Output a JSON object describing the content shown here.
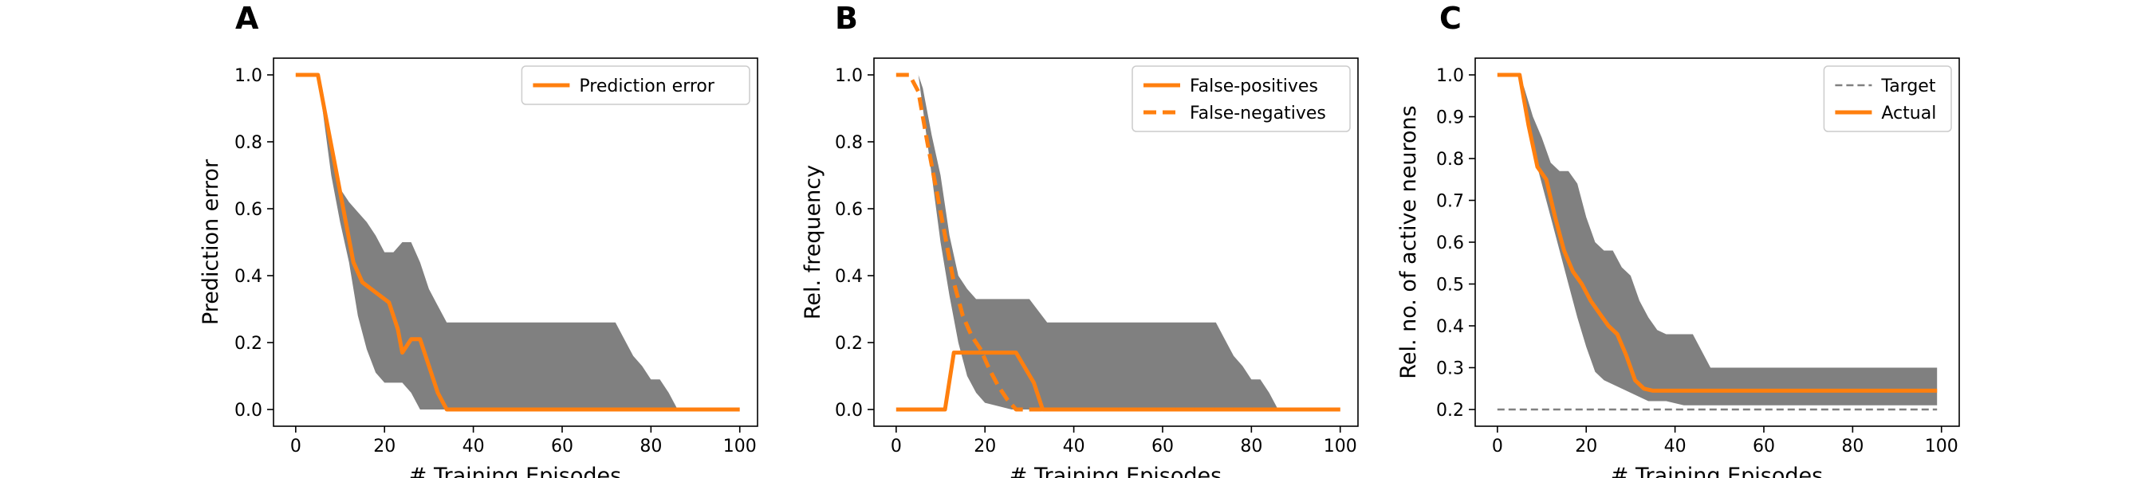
{
  "chart_data": [
    {
      "panel": "A",
      "type": "line",
      "xlabel": "# Training Episodes",
      "ylabel": "Prediction error",
      "xlim": [
        -5,
        104
      ],
      "ylim": [
        -0.05,
        1.05
      ],
      "xticks": [
        0,
        20,
        40,
        60,
        80,
        100
      ],
      "yticks": [
        0.0,
        0.2,
        0.4,
        0.6,
        0.8,
        1.0
      ],
      "ytick_labels": [
        "0.0",
        "0.2",
        "0.4",
        "0.6",
        "0.8",
        "1.0"
      ],
      "legend_position": "top-right",
      "band_color": "#808080",
      "band_x": [
        0,
        5,
        6,
        8,
        10,
        12,
        14,
        16,
        18,
        20,
        22,
        24,
        26,
        28,
        30,
        32,
        34,
        40,
        60,
        72,
        74,
        76,
        78,
        80,
        82,
        84,
        86,
        88,
        100
      ],
      "band_upper": [
        1.0,
        1.0,
        0.96,
        0.8,
        0.66,
        0.62,
        0.59,
        0.56,
        0.52,
        0.47,
        0.47,
        0.5,
        0.5,
        0.44,
        0.36,
        0.31,
        0.26,
        0.26,
        0.26,
        0.26,
        0.21,
        0.16,
        0.13,
        0.09,
        0.09,
        0.05,
        0.0,
        0.0,
        0.0
      ],
      "band_lower": [
        1.0,
        1.0,
        0.9,
        0.7,
        0.56,
        0.44,
        0.28,
        0.18,
        0.11,
        0.08,
        0.08,
        0.08,
        0.05,
        0.0,
        0.0,
        0.0,
        0.0,
        0.0,
        0.0,
        0.0,
        0.0,
        0.0,
        0.0,
        0.0,
        0.0,
        0.0,
        0.0,
        0.0,
        0.0
      ],
      "series": [
        {
          "name": "Prediction error",
          "color": "#ff7f0e",
          "dash": "solid",
          "x": [
            0,
            5,
            7,
            9,
            11,
            13,
            15,
            17,
            19,
            21,
            23,
            24,
            26,
            28,
            30,
            32,
            34,
            100
          ],
          "values": [
            1.0,
            1.0,
            0.86,
            0.72,
            0.58,
            0.44,
            0.38,
            0.36,
            0.34,
            0.32,
            0.24,
            0.17,
            0.21,
            0.21,
            0.13,
            0.05,
            0.0,
            0.0
          ]
        }
      ]
    },
    {
      "panel": "B",
      "type": "line",
      "xlabel": "# Training Episodes",
      "ylabel": "Rel. frequency",
      "xlim": [
        -5,
        104
      ],
      "ylim": [
        -0.05,
        1.05
      ],
      "xticks": [
        0,
        20,
        40,
        60,
        80,
        100
      ],
      "yticks": [
        0.0,
        0.2,
        0.4,
        0.6,
        0.8,
        1.0
      ],
      "ytick_labels": [
        "0.0",
        "0.2",
        "0.4",
        "0.6",
        "0.8",
        "1.0"
      ],
      "legend_position": "top-right",
      "band_color": "#808080",
      "band_x": [
        0,
        5,
        6,
        8,
        10,
        12,
        14,
        16,
        18,
        20,
        26,
        30,
        34,
        40,
        60,
        72,
        74,
        76,
        78,
        80,
        82,
        84,
        86,
        88,
        100
      ],
      "band_upper": [
        1.0,
        1.0,
        0.96,
        0.82,
        0.7,
        0.52,
        0.4,
        0.36,
        0.33,
        0.33,
        0.33,
        0.33,
        0.26,
        0.26,
        0.26,
        0.26,
        0.21,
        0.16,
        0.13,
        0.09,
        0.09,
        0.05,
        0.0,
        0.0,
        0.0
      ],
      "band_lower": [
        1.0,
        1.0,
        0.9,
        0.7,
        0.5,
        0.34,
        0.2,
        0.1,
        0.05,
        0.02,
        0.0,
        0.0,
        0.0,
        0.0,
        0.0,
        0.0,
        0.0,
        0.0,
        0.0,
        0.0,
        0.0,
        0.0,
        0.0,
        0.0,
        0.0
      ],
      "series": [
        {
          "name": "False-positives",
          "color": "#ff7f0e",
          "dash": "solid",
          "x": [
            0,
            11,
            13,
            18,
            27,
            31,
            33,
            100
          ],
          "values": [
            0.0,
            0.0,
            0.17,
            0.17,
            0.17,
            0.08,
            0.0,
            0.0
          ]
        },
        {
          "name": "False-negatives",
          "color": "#ff7f0e",
          "dash": "dashed",
          "x": [
            0,
            3,
            5,
            7,
            9,
            11,
            13,
            15,
            17,
            19,
            21,
            23,
            25,
            27,
            29,
            100
          ],
          "values": [
            1.0,
            1.0,
            0.95,
            0.8,
            0.66,
            0.52,
            0.38,
            0.28,
            0.22,
            0.18,
            0.12,
            0.07,
            0.03,
            0.0,
            0.0,
            0.0
          ]
        }
      ]
    },
    {
      "panel": "C",
      "type": "line",
      "xlabel": "# Training Episodes",
      "ylabel": "Rel. no. of active neurons",
      "xlim": [
        -5,
        104
      ],
      "ylim": [
        0.16,
        1.04
      ],
      "xticks": [
        0,
        20,
        40,
        60,
        80,
        100
      ],
      "yticks": [
        0.2,
        0.3,
        0.4,
        0.5,
        0.6,
        0.7,
        0.8,
        0.9,
        1.0
      ],
      "ytick_labels": [
        "0.2",
        "0.3",
        "0.4",
        "0.5",
        "0.6",
        "0.7",
        "0.8",
        "0.9",
        "1.0"
      ],
      "legend_position": "top-right",
      "band_color": "#808080",
      "band_x": [
        0,
        5,
        6,
        8,
        10,
        12,
        14,
        16,
        18,
        20,
        22,
        24,
        26,
        28,
        30,
        32,
        34,
        36,
        38,
        42,
        44,
        46,
        48,
        60,
        80,
        99
      ],
      "band_upper": [
        1.0,
        1.0,
        0.97,
        0.9,
        0.85,
        0.79,
        0.77,
        0.77,
        0.74,
        0.66,
        0.6,
        0.58,
        0.58,
        0.54,
        0.52,
        0.46,
        0.42,
        0.39,
        0.38,
        0.38,
        0.38,
        0.34,
        0.3,
        0.3,
        0.3,
        0.3
      ],
      "band_lower": [
        1.0,
        1.0,
        0.92,
        0.82,
        0.74,
        0.66,
        0.58,
        0.5,
        0.42,
        0.35,
        0.29,
        0.27,
        0.26,
        0.25,
        0.24,
        0.23,
        0.22,
        0.22,
        0.22,
        0.21,
        0.21,
        0.21,
        0.21,
        0.21,
        0.21,
        0.21
      ],
      "series": [
        {
          "name": "Target",
          "color": "#808080",
          "dash": "dashed",
          "x": [
            0,
            99
          ],
          "values": [
            0.2,
            0.2
          ]
        },
        {
          "name": "Actual",
          "color": "#ff7f0e",
          "dash": "solid",
          "x": [
            0,
            5,
            7,
            9,
            11,
            13,
            15,
            17,
            19,
            21,
            23,
            25,
            27,
            29,
            31,
            33,
            35,
            40,
            60,
            80,
            99
          ],
          "values": [
            1.0,
            1.0,
            0.88,
            0.78,
            0.75,
            0.66,
            0.58,
            0.53,
            0.5,
            0.46,
            0.43,
            0.4,
            0.38,
            0.33,
            0.27,
            0.25,
            0.245,
            0.245,
            0.245,
            0.245,
            0.245
          ]
        }
      ]
    }
  ]
}
